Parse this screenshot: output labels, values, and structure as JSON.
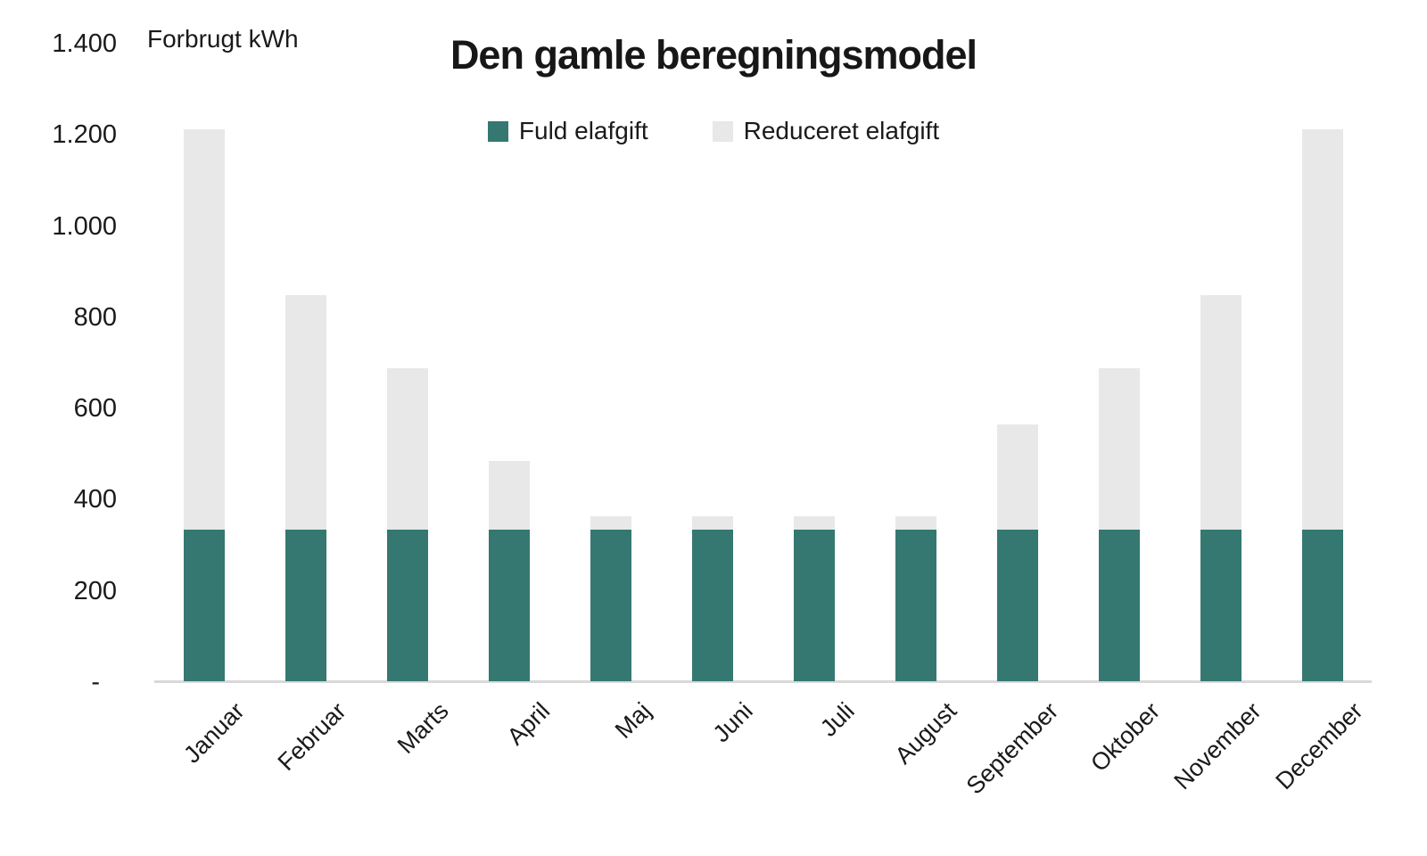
{
  "chart_data": {
    "type": "bar",
    "stacked": true,
    "title": "Den gamle beregningsmodel",
    "xlabel": "",
    "ylabel": "Forbrugt kWh",
    "ylim": [
      0,
      1400
    ],
    "ytick_labels": [
      "-",
      "200",
      "400",
      "600",
      "800",
      "1.000",
      "1.200",
      "1.400"
    ],
    "grid": false,
    "legend_position": "top-center",
    "categories": [
      "Januar",
      "Februar",
      "Marts",
      "April",
      "Maj",
      "Juni",
      "Juli",
      "August",
      "September",
      "Oktober",
      "November",
      "December"
    ],
    "series": [
      {
        "name": "Fuld elafgift",
        "color": "#347871",
        "values": [
          333,
          333,
          333,
          333,
          333,
          333,
          333,
          333,
          333,
          333,
          333,
          333
        ]
      },
      {
        "name": "Reduceret elafgift",
        "color": "#e8e8e8",
        "values": [
          877,
          513,
          353,
          150,
          29,
          29,
          29,
          29,
          231,
          353,
          513,
          877
        ]
      }
    ],
    "totals": [
      1210,
      846,
      686,
      483,
      362,
      362,
      362,
      362,
      564,
      686,
      846,
      1210
    ]
  },
  "colors": {
    "axis_line": "#d9d9d9",
    "text": "#1a1a1a"
  }
}
